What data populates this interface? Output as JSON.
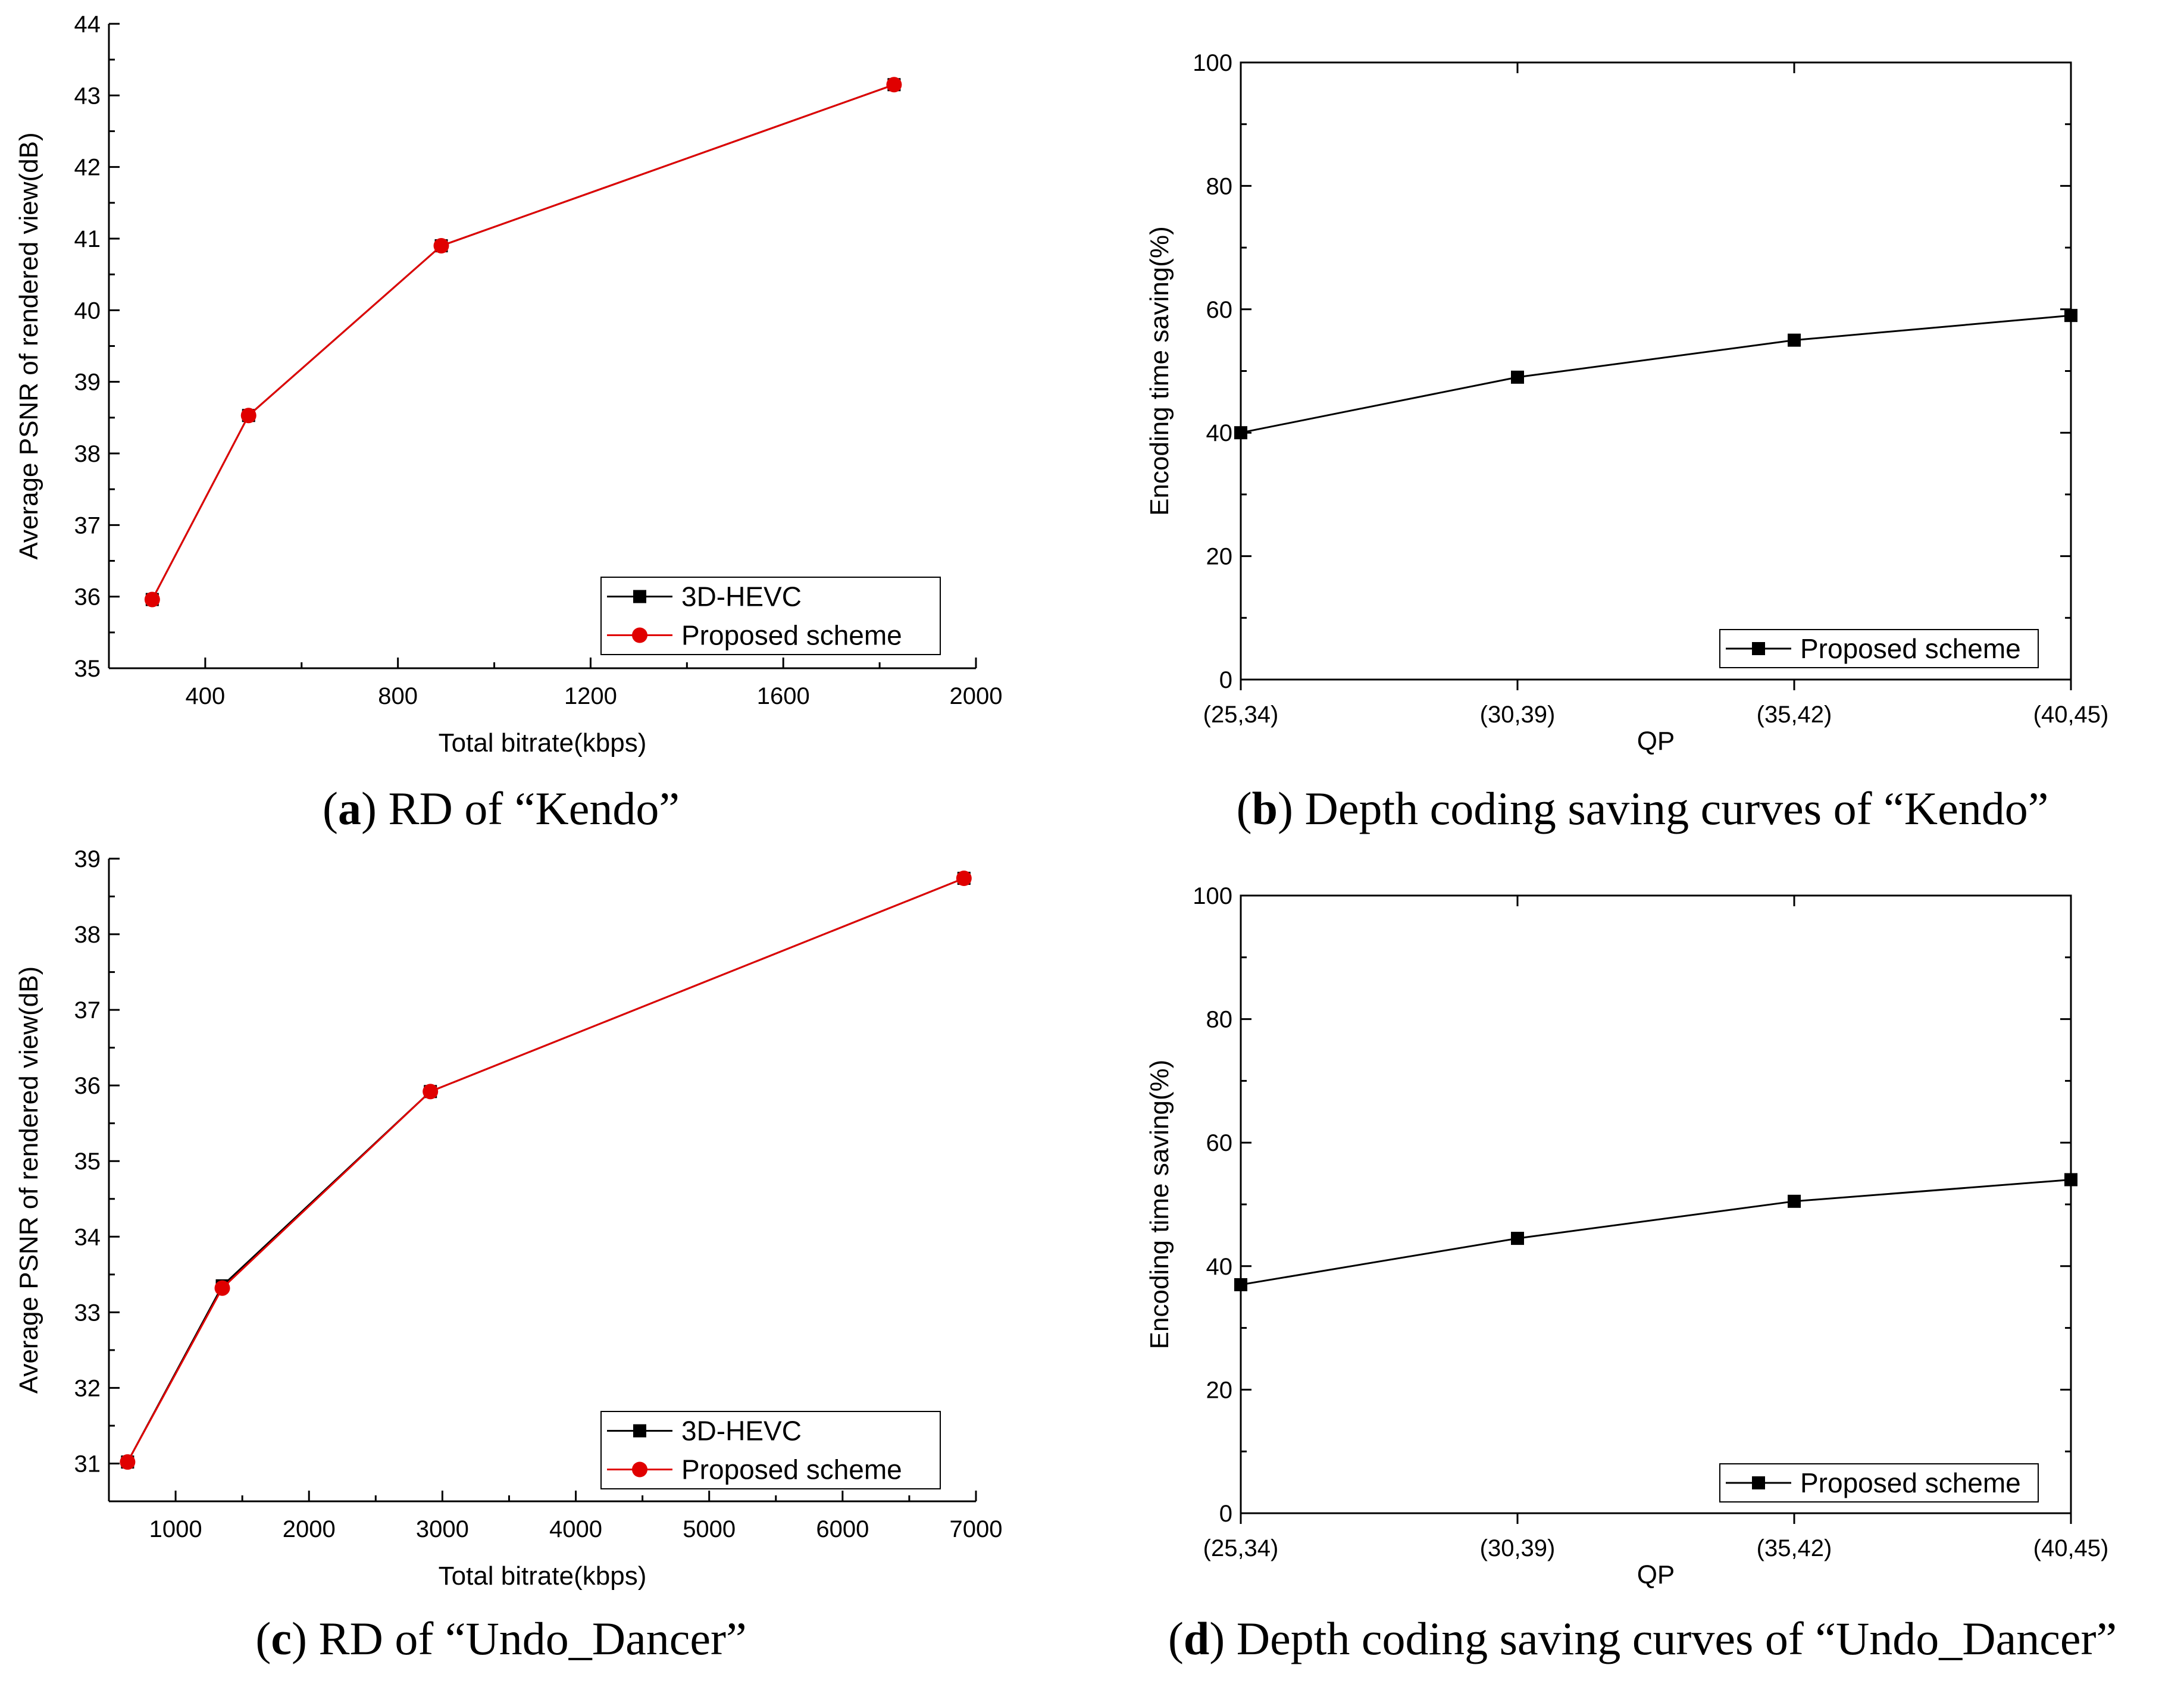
{
  "colors": {
    "series_black": "#000000",
    "series_red": "#e00000",
    "axis": "#000000"
  },
  "chart_data": [
    {
      "type": "line",
      "xlabel": "Total bitrate(kbps)",
      "ylabel": "Average PSNR of rendered view(dB)",
      "xlim": [
        200,
        2000
      ],
      "ylim": [
        35,
        44
      ],
      "xticks": [
        400,
        800,
        1200,
        1600,
        2000
      ],
      "xtick_labels": [
        "400",
        "800",
        "1200",
        "1600",
        "2000"
      ],
      "yticks": [
        35,
        36,
        37,
        38,
        39,
        40,
        41,
        42,
        43,
        44
      ],
      "ytick_labels": [
        "35",
        "36",
        "37",
        "38",
        "39",
        "40",
        "41",
        "42",
        "43",
        "44"
      ],
      "legend_position": "bottom-right",
      "series": [
        {
          "name": "3D-HEVC",
          "marker": "square",
          "color": "#000000",
          "x": [
            290,
            490,
            890,
            1830
          ],
          "y": [
            35.96,
            38.53,
            40.9,
            43.15
          ]
        },
        {
          "name": "Proposed scheme",
          "marker": "circle",
          "color": "#e00000",
          "x": [
            290,
            490,
            890,
            1830
          ],
          "y": [
            35.96,
            38.53,
            40.9,
            43.15
          ]
        }
      ],
      "caption": {
        "letter": "a",
        "text": ") RD of “Kendo”",
        "prefix": "("
      }
    },
    {
      "type": "line",
      "xlabel": "QP",
      "ylabel": "Encoding time saving(%)",
      "categories": [
        "(25,34)",
        "(30,39)",
        "(35,42)",
        "(40,45)"
      ],
      "ylim": [
        0,
        100
      ],
      "yticks": [
        0,
        20,
        40,
        60,
        80,
        100
      ],
      "ytick_labels": [
        "0",
        "20",
        "40",
        "60",
        "80",
        "100"
      ],
      "legend_position": "bottom-right",
      "series": [
        {
          "name": "Proposed scheme",
          "marker": "square",
          "color": "#000000",
          "values": [
            40,
            49,
            55,
            59
          ]
        }
      ],
      "caption": {
        "letter": "b",
        "text": ") Depth coding saving curves of “Kendo”",
        "prefix": "("
      }
    },
    {
      "type": "line",
      "xlabel": "Total bitrate(kbps)",
      "ylabel": "Average PSNR of rendered view(dB)",
      "xlim": [
        500,
        7000
      ],
      "ylim": [
        30.5,
        39
      ],
      "xticks": [
        1000,
        2000,
        3000,
        4000,
        5000,
        6000,
        7000
      ],
      "xtick_labels": [
        "1000",
        "2000",
        "3000",
        "4000",
        "5000",
        "6000",
        "7000"
      ],
      "yticks": [
        31,
        32,
        33,
        34,
        35,
        36,
        37,
        38,
        39
      ],
      "ytick_labels": [
        "31",
        "32",
        "33",
        "34",
        "35",
        "36",
        "37",
        "38",
        "39"
      ],
      "legend_position": "bottom-right",
      "series": [
        {
          "name": "3D-HEVC",
          "marker": "square",
          "color": "#000000",
          "x": [
            640,
            1350,
            2910,
            6910
          ],
          "y": [
            31.02,
            33.35,
            35.92,
            38.74
          ]
        },
        {
          "name": "Proposed scheme",
          "marker": "circle",
          "color": "#e00000",
          "x": [
            640,
            1350,
            2910,
            6910
          ],
          "y": [
            31.02,
            33.32,
            35.92,
            38.74
          ]
        }
      ],
      "caption": {
        "letter": "c",
        "text": ") RD of “Undo_Dancer”",
        "prefix": "("
      }
    },
    {
      "type": "line",
      "xlabel": "QP",
      "ylabel": "Encoding time saving(%)",
      "categories": [
        "(25,34)",
        "(30,39)",
        "(35,42)",
        "(40,45)"
      ],
      "ylim": [
        0,
        100
      ],
      "yticks": [
        0,
        20,
        40,
        60,
        80,
        100
      ],
      "ytick_labels": [
        "0",
        "20",
        "40",
        "60",
        "80",
        "100"
      ],
      "legend_position": "bottom-right",
      "series": [
        {
          "name": "Proposed scheme",
          "marker": "square",
          "color": "#000000",
          "values": [
            37,
            44.5,
            50.5,
            54
          ]
        }
      ],
      "caption": {
        "letter": "d",
        "text": ") Depth coding saving curves of “Undo_Dancer”",
        "prefix": "("
      }
    }
  ]
}
